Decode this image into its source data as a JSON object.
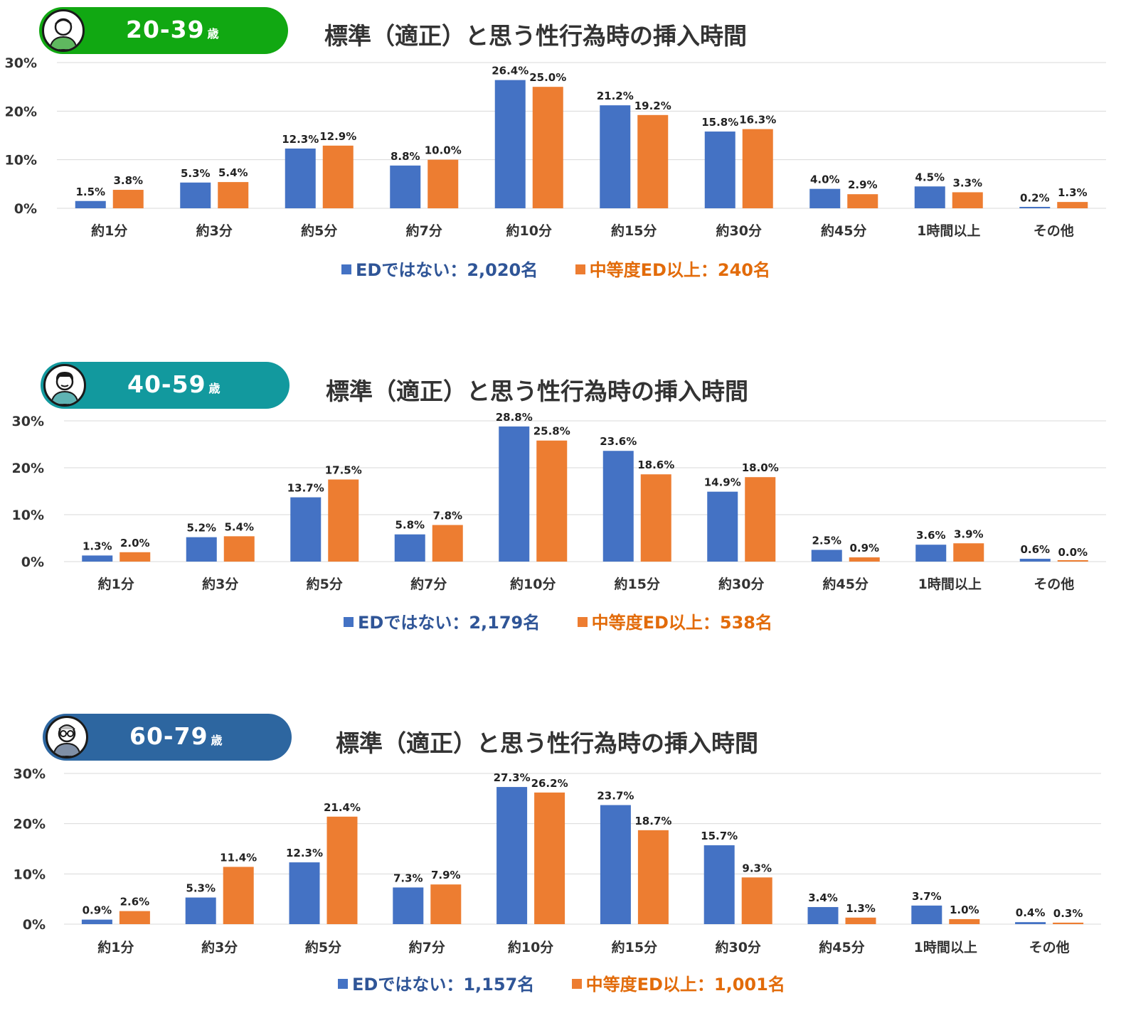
{
  "colors": {
    "blue": "#4472C4",
    "orange": "#ED7D31",
    "grid": "#D9D9D9"
  },
  "chart_data": [
    {
      "type": "bar",
      "badge": {
        "age": "20-39",
        "unit": "歳",
        "color": "#11A812",
        "icon": "young-man-avatar-icon"
      },
      "title": "標準（適正）と思う性行為時の挿入時間",
      "categories": [
        "約1分",
        "約3分",
        "約5分",
        "約7分",
        "約10分",
        "約15分",
        "約30分",
        "約45分",
        "1時間以上",
        "その他"
      ],
      "series": [
        {
          "name": "EDではない：2,020名",
          "color": "#4472C4",
          "values": [
            1.5,
            5.3,
            12.3,
            8.8,
            26.4,
            21.2,
            15.8,
            4.0,
            4.5,
            0.2
          ],
          "labels": [
            "1.5%",
            "5.3%",
            "12.3%",
            "8.8%",
            "26.4%",
            "21.2%",
            "15.8%",
            "4.0%",
            "4.5%",
            "0.2%"
          ]
        },
        {
          "name": "中等度ED以上：240名",
          "color": "#ED7D31",
          "values": [
            3.8,
            5.4,
            12.9,
            10.0,
            25.0,
            19.2,
            16.3,
            2.9,
            3.3,
            1.3
          ],
          "labels": [
            "3.8%",
            "5.4%",
            "12.9%",
            "10.0%",
            "25.0%",
            "19.2%",
            "16.3%",
            "2.9%",
            "3.3%",
            "1.3%"
          ]
        }
      ],
      "ylim": [
        0,
        30
      ],
      "yticks": [
        "0%",
        "10%",
        "20%",
        "30%"
      ],
      "grid": true,
      "legend": "bottom"
    },
    {
      "type": "bar",
      "badge": {
        "age": "40-59",
        "unit": "歳",
        "color": "#12999E",
        "icon": "middle-aged-man-avatar-icon"
      },
      "title": "標準（適正）と思う性行為時の挿入時間",
      "categories": [
        "約1分",
        "約3分",
        "約5分",
        "約7分",
        "約10分",
        "約15分",
        "約30分",
        "約45分",
        "1時間以上",
        "その他"
      ],
      "series": [
        {
          "name": "EDではない：2,179名",
          "color": "#4472C4",
          "values": [
            1.3,
            5.2,
            13.7,
            5.8,
            28.8,
            23.6,
            14.9,
            2.5,
            3.6,
            0.6
          ],
          "labels": [
            "1.3%",
            "5.2%",
            "13.7%",
            "5.8%",
            "28.8%",
            "23.6%",
            "14.9%",
            "2.5%",
            "3.6%",
            "0.6%"
          ]
        },
        {
          "name": "中等度ED以上：538名",
          "color": "#ED7D31",
          "values": [
            2.0,
            5.4,
            17.5,
            7.8,
            25.8,
            18.6,
            18.0,
            0.9,
            3.9,
            0.0
          ],
          "labels": [
            "2.0%",
            "5.4%",
            "17.5%",
            "7.8%",
            "25.8%",
            "18.6%",
            "18.0%",
            "0.9%",
            "3.9%",
            "0.0%"
          ]
        }
      ],
      "ylim": [
        0,
        30
      ],
      "yticks": [
        "0%",
        "10%",
        "20%",
        "30%"
      ],
      "grid": true,
      "legend": "bottom"
    },
    {
      "type": "bar",
      "badge": {
        "age": "60-79",
        "unit": "歳",
        "color": "#2D66A0",
        "icon": "older-man-glasses-avatar-icon"
      },
      "title": "標準（適正）と思う性行為時の挿入時間",
      "categories": [
        "約1分",
        "約3分",
        "約5分",
        "約7分",
        "約10分",
        "約15分",
        "約30分",
        "約45分",
        "1時間以上",
        "その他"
      ],
      "series": [
        {
          "name": "EDではない：1,157名",
          "color": "#4472C4",
          "values": [
            0.9,
            5.3,
            12.3,
            7.3,
            27.3,
            23.7,
            15.7,
            3.4,
            3.7,
            0.4
          ],
          "labels": [
            "0.9%",
            "5.3%",
            "12.3%",
            "7.3%",
            "27.3%",
            "23.7%",
            "15.7%",
            "3.4%",
            "3.7%",
            "0.4%"
          ]
        },
        {
          "name": "中等度ED以上：1,001名",
          "color": "#ED7D31",
          "values": [
            2.6,
            11.4,
            21.4,
            7.9,
            26.2,
            18.7,
            9.3,
            1.3,
            1.0,
            0.3
          ],
          "labels": [
            "2.6%",
            "11.4%",
            "21.4%",
            "7.9%",
            "26.2%",
            "18.7%",
            "9.3%",
            "1.3%",
            "1.0%",
            "0.3%"
          ]
        }
      ],
      "ylim": [
        0,
        30
      ],
      "yticks": [
        "0%",
        "10%",
        "20%",
        "30%"
      ],
      "grid": true,
      "legend": "bottom"
    }
  ]
}
